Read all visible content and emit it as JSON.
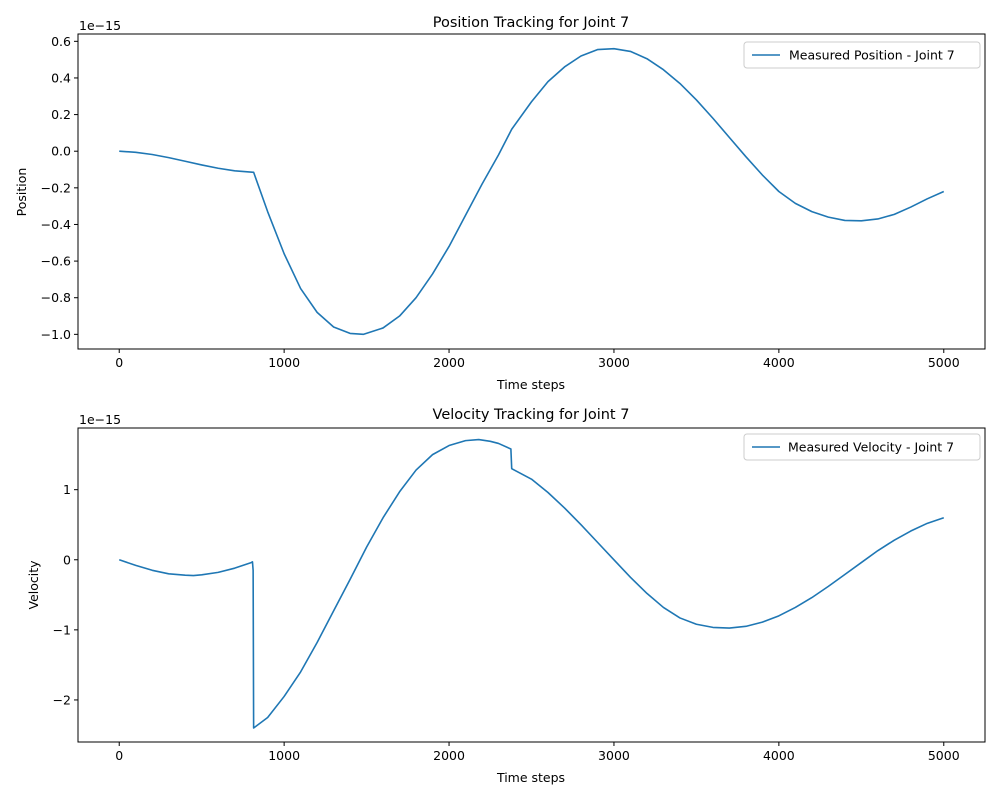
{
  "chart_data": [
    {
      "type": "line",
      "title": "Position Tracking for Joint 7",
      "xlabel": "Time steps",
      "ylabel": "Position",
      "offset_label": "1e−15",
      "xlim": [
        -250,
        5250
      ],
      "ylim": [
        -1.08,
        0.64
      ],
      "xticks": [
        0,
        1000,
        2000,
        3000,
        4000,
        5000
      ],
      "xtick_labels": [
        "0",
        "1000",
        "2000",
        "3000",
        "4000",
        "5000"
      ],
      "yticks": [
        -1.0,
        -0.8,
        -0.6,
        -0.4,
        -0.2,
        0.0,
        0.2,
        0.4,
        0.6
      ],
      "ytick_labels": [
        "−1.0",
        "−0.8",
        "−0.6",
        "−0.4",
        "−0.2",
        "0.0",
        "0.2",
        "0.4",
        "0.6"
      ],
      "grid": false,
      "legend_position": "top-right",
      "color": "#1f77b4",
      "series": [
        {
          "name": "Measured Position - Joint 7",
          "x": [
            0,
            100,
            200,
            300,
            400,
            500,
            600,
            700,
            815,
            900,
            1000,
            1100,
            1200,
            1300,
            1400,
            1480,
            1600,
            1700,
            1800,
            1900,
            2000,
            2100,
            2200,
            2300,
            2380,
            2500,
            2600,
            2700,
            2800,
            2900,
            3000,
            3100,
            3200,
            3300,
            3400,
            3500,
            3600,
            3700,
            3800,
            3900,
            4000,
            4100,
            4200,
            4300,
            4400,
            4500,
            4600,
            4700,
            4800,
            4900,
            5000
          ],
          "y": [
            0.0,
            -0.006,
            -0.018,
            -0.035,
            -0.055,
            -0.075,
            -0.093,
            -0.107,
            -0.115,
            -0.33,
            -0.56,
            -0.75,
            -0.88,
            -0.96,
            -0.995,
            -1.0,
            -0.965,
            -0.9,
            -0.8,
            -0.67,
            -0.52,
            -0.35,
            -0.18,
            -0.02,
            0.12,
            0.27,
            0.38,
            0.46,
            0.52,
            0.555,
            0.56,
            0.545,
            0.505,
            0.445,
            0.37,
            0.28,
            0.18,
            0.075,
            -0.03,
            -0.13,
            -0.22,
            -0.285,
            -0.33,
            -0.36,
            -0.378,
            -0.38,
            -0.37,
            -0.345,
            -0.305,
            -0.26,
            -0.22
          ]
        }
      ]
    },
    {
      "type": "line",
      "title": "Velocity Tracking for Joint 7",
      "xlabel": "Time steps",
      "ylabel": "Velocity",
      "offset_label": "1e−15",
      "xlim": [
        -250,
        5250
      ],
      "ylim": [
        -2.6,
        1.88
      ],
      "xticks": [
        0,
        1000,
        2000,
        3000,
        4000,
        5000
      ],
      "xtick_labels": [
        "0",
        "1000",
        "2000",
        "3000",
        "4000",
        "5000"
      ],
      "yticks": [
        -2,
        -1,
        0,
        1
      ],
      "ytick_labels": [
        "−2",
        "−1",
        "0",
        "1"
      ],
      "grid": false,
      "legend_position": "top-right",
      "color": "#1f77b4",
      "series": [
        {
          "name": "Measured Velocity - Joint 7",
          "x": [
            0,
            100,
            200,
            300,
            400,
            450,
            500,
            600,
            700,
            800,
            808,
            812,
            815,
            900,
            1000,
            1100,
            1200,
            1300,
            1400,
            1500,
            1600,
            1700,
            1800,
            1900,
            2000,
            2100,
            2180,
            2250,
            2300,
            2375,
            2380,
            2500,
            2600,
            2700,
            2800,
            2900,
            3000,
            3100,
            3200,
            3300,
            3400,
            3500,
            3600,
            3700,
            3800,
            3900,
            4000,
            4100,
            4200,
            4300,
            4400,
            4500,
            4600,
            4700,
            4800,
            4900,
            5000
          ],
          "y": [
            0.0,
            -0.08,
            -0.15,
            -0.2,
            -0.22,
            -0.225,
            -0.215,
            -0.18,
            -0.12,
            -0.04,
            -0.03,
            -0.15,
            -2.4,
            -2.25,
            -1.95,
            -1.6,
            -1.18,
            -0.73,
            -0.28,
            0.18,
            0.6,
            0.97,
            1.28,
            1.5,
            1.63,
            1.7,
            1.715,
            1.69,
            1.66,
            1.58,
            1.3,
            1.15,
            0.96,
            0.74,
            0.5,
            0.25,
            0.0,
            -0.25,
            -0.48,
            -0.68,
            -0.83,
            -0.92,
            -0.965,
            -0.975,
            -0.95,
            -0.89,
            -0.8,
            -0.68,
            -0.54,
            -0.38,
            -0.21,
            -0.04,
            0.13,
            0.28,
            0.41,
            0.52,
            0.6
          ]
        }
      ]
    }
  ]
}
